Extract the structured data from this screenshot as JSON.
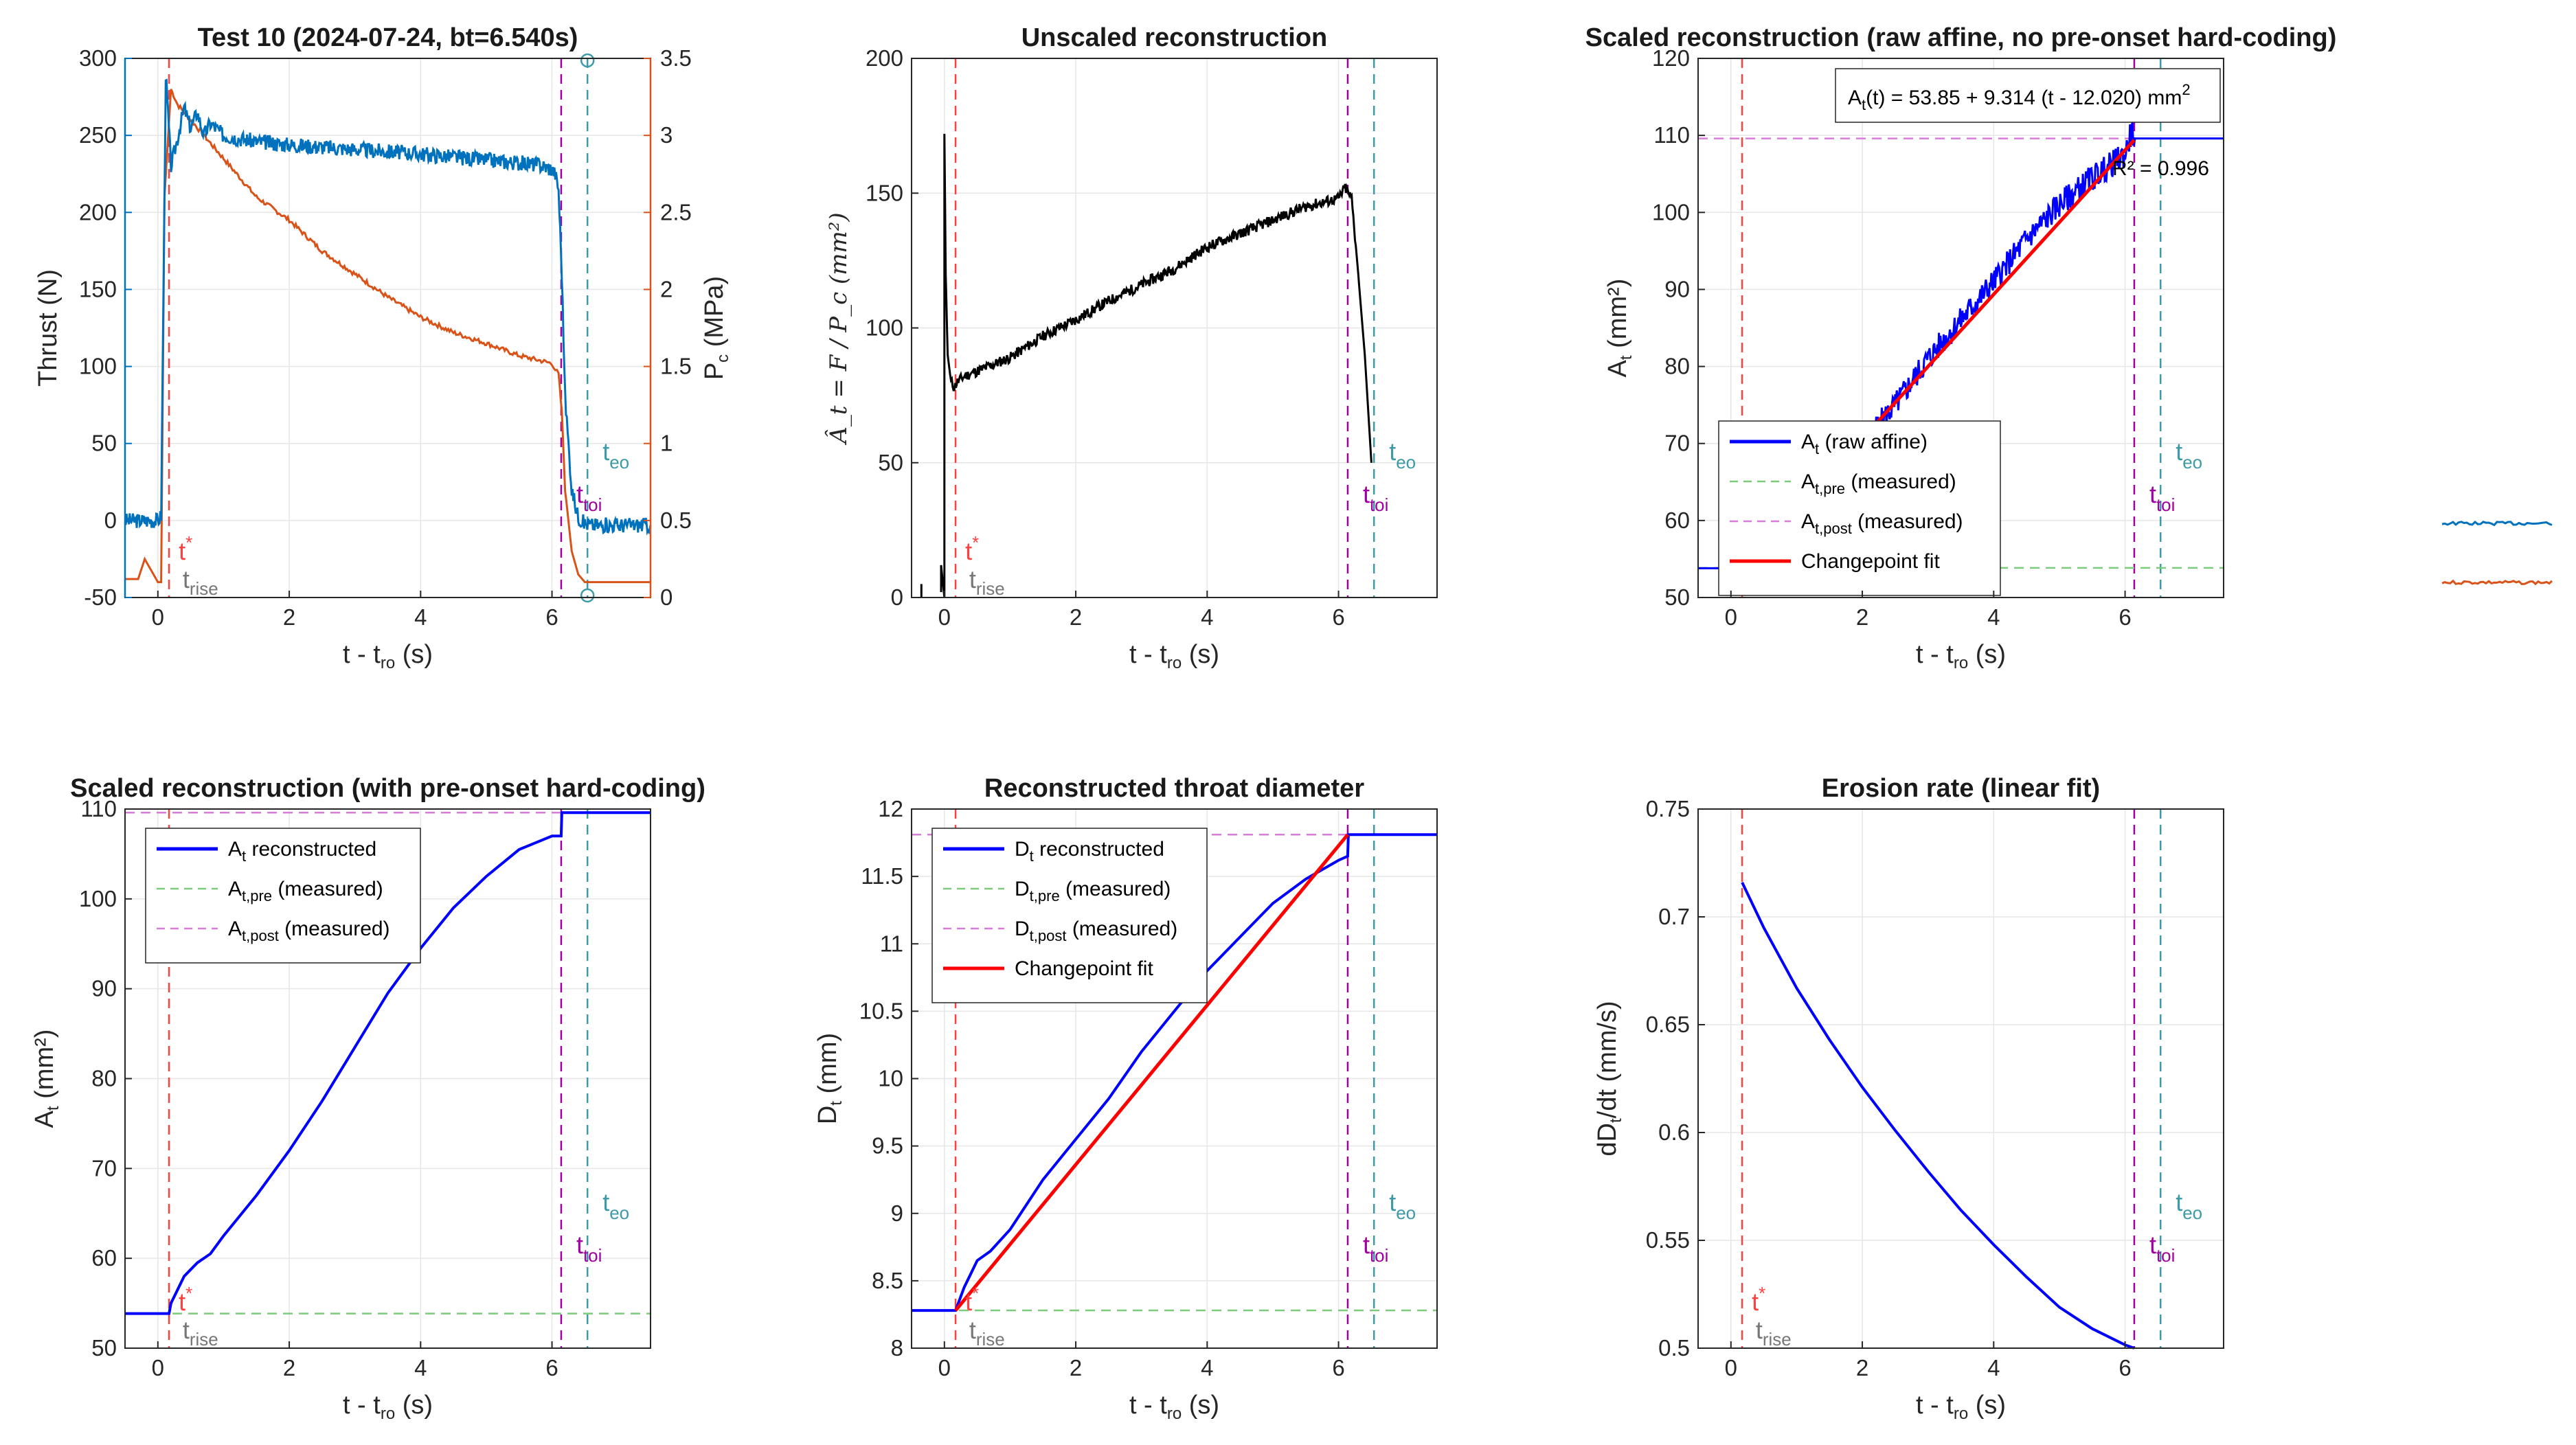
{
  "colors": {
    "thrust": "#0072BD",
    "pc": "#D95319",
    "at_raw": "#0000FF",
    "fit": "#FF0000",
    "pre": "#7CCB7C",
    "post": "#D97CD9",
    "tstar": "#FF4040",
    "toi": "#A000A0",
    "teo": "#3D9AA6",
    "trise": "#777777"
  },
  "annotations": {
    "t_star": "t",
    "t_star_sup": "*",
    "t_rise": "t",
    "t_rise_sub": "rise",
    "t_oi": "t",
    "t_oi_sub": "toi",
    "t_eo": "t",
    "t_eo_sub": "eo"
  },
  "common": {
    "xlabel_main": "t - t",
    "xlabel_sub": "ro",
    "xlabel_unit": " (s)",
    "x_ticks": [
      "0",
      "2",
      "4",
      "6"
    ]
  },
  "chart_data": [
    {
      "id": "p1",
      "type": "line",
      "title": "Test 10   (2024-07-24, bt=6.540s)",
      "ylabel_left": "Thrust (N)",
      "ylabel_right_main": "P",
      "ylabel_right_sub": "c",
      "ylabel_right_unit": " (MPa)",
      "xlim": [
        -0.5,
        7.5
      ],
      "ylim_left": [
        -50,
        300
      ],
      "ylim_right": [
        0,
        3.5
      ],
      "yticks_left": [
        "-50",
        "0",
        "50",
        "100",
        "150",
        "200",
        "250",
        "300"
      ],
      "yticks_right": [
        "0",
        "0.5",
        "1",
        "1.5",
        "2",
        "2.5",
        "3",
        "3.5"
      ],
      "series": [
        {
          "axis": "left",
          "x": [
            -0.5,
            0.0,
            0.05,
            0.12,
            0.2,
            0.3,
            0.4,
            0.5,
            0.6,
            0.7,
            0.8,
            1.0,
            1.5,
            2.0,
            3.0,
            4.0,
            5.0,
            5.8,
            6.0,
            6.05,
            6.1,
            6.15,
            6.2,
            6.3,
            6.4,
            6.5,
            6.6,
            7.0,
            7.5
          ],
          "y": [
            0,
            0,
            3,
            290,
            230,
            248,
            268,
            255,
            265,
            250,
            258,
            250,
            246,
            244,
            241,
            238,
            234,
            231,
            228,
            225,
            215,
            160,
            80,
            20,
            2,
            -2,
            -3,
            -3,
            -3
          ]
        },
        {
          "axis": "right",
          "x": [
            -0.5,
            -0.3,
            -0.2,
            0.0,
            0.05,
            0.1,
            0.2,
            0.3,
            0.5,
            0.8,
            1.0,
            1.5,
            2.0,
            2.5,
            3.0,
            3.5,
            4.0,
            4.5,
            5.0,
            5.5,
            6.0,
            6.05,
            6.1,
            6.15,
            6.2,
            6.3,
            6.4,
            6.5,
            7.5
          ],
          "y": [
            0.12,
            0.12,
            0.25,
            0.1,
            0.1,
            2.6,
            3.3,
            3.2,
            3.1,
            2.95,
            2.85,
            2.6,
            2.45,
            2.25,
            2.1,
            1.95,
            1.82,
            1.72,
            1.65,
            1.57,
            1.52,
            1.48,
            1.45,
            1.2,
            0.7,
            0.3,
            0.15,
            0.1,
            0.1
          ]
        }
      ],
      "vlines": {
        "t_rise": 0.0,
        "t_star": 0.17,
        "t_oi": 6.14,
        "t_eo": 6.54
      }
    },
    {
      "id": "p2",
      "type": "line",
      "title": "Unscaled reconstruction",
      "ylabel": "Â_t = F / P_c (mm²)",
      "xlim": [
        -0.5,
        7.5
      ],
      "ylim": [
        0,
        200
      ],
      "yticks": [
        "0",
        "50",
        "100",
        "150",
        "200"
      ],
      "series": [
        {
          "x": [
            -0.35,
            -0.35
          ],
          "y": [
            0,
            5
          ]
        },
        {
          "x": [
            -0.05,
            -0.05,
            0.0,
            0.0,
            0.02,
            0.05,
            0.1,
            0.15,
            0.2,
            0.3,
            0.5,
            0.8,
            1.0,
            1.5,
            2.0,
            2.5,
            3.0,
            3.5,
            4.0,
            4.5,
            5.0,
            5.5,
            6.0,
            6.1,
            6.2,
            6.3,
            6.4,
            6.5
          ],
          "y": [
            2,
            12,
            0,
            172,
            120,
            90,
            80,
            78,
            80,
            82,
            84,
            87,
            89,
            97,
            103,
            110,
            116,
            122,
            130,
            135,
            140,
            145,
            148,
            152,
            148,
            120,
            90,
            50
          ]
        }
      ],
      "vlines": {
        "t_rise": 0.0,
        "t_star": 0.17,
        "t_oi": 6.14,
        "t_eo": 6.54
      }
    },
    {
      "id": "p3",
      "type": "line",
      "title": "Scaled reconstruction (raw affine, no pre-onset hard-coding)",
      "ylabel_main": "A",
      "ylabel_sub": "t",
      "ylabel_unit": " (mm²)",
      "xlim": [
        -0.5,
        7.5
      ],
      "ylim": [
        50,
        120
      ],
      "yticks": [
        "50",
        "60",
        "70",
        "80",
        "90",
        "100",
        "110",
        "120"
      ],
      "fit_label": "A(t) = 53.85 + 9.314 (t - 12.020) mm",
      "fit_label_sub": "t",
      "fit_label_sup": "2",
      "r2_label": "R² = 0.996",
      "legend": [
        {
          "main": "A",
          "sub": "t",
          "rest": " (raw affine)"
        },
        {
          "main": "A",
          "sub": "t,pre",
          "rest": " (measured)"
        },
        {
          "main": "A",
          "sub": "t,post",
          "rest": " (measured)"
        },
        {
          "main": "Changepoint fit",
          "sub": "",
          "rest": ""
        }
      ],
      "series": [
        {
          "name": "raw",
          "x": [
            -0.5,
            0.3,
            2.2,
            2.5,
            3.0,
            3.5,
            4.0,
            4.5,
            5.0,
            5.5,
            6.0,
            6.1,
            6.15,
            7.5
          ],
          "y": [
            53.8,
            53.8,
            72.0,
            75.0,
            81.0,
            86.0,
            91.0,
            96.5,
            101.0,
            104.5,
            107.5,
            110.5,
            109.6,
            109.6
          ]
        },
        {
          "name": "fit",
          "x": [
            2.2,
            6.14
          ],
          "y": [
            72.5,
            109.4
          ]
        }
      ],
      "hlines": {
        "pre": 53.85,
        "post": 109.6
      },
      "vlines": {
        "t_rise": 0.0,
        "t_star": 0.17,
        "t_oi": 6.14,
        "t_eo": 6.54
      }
    },
    {
      "id": "p4",
      "type": "line",
      "title": "Scaled reconstruction (with pre-onset hard-coding)",
      "ylabel_main": "A",
      "ylabel_sub": "t",
      "ylabel_unit": " (mm²)",
      "xlim": [
        -0.5,
        7.5
      ],
      "ylim": [
        50,
        110
      ],
      "yticks": [
        "50",
        "60",
        "70",
        "80",
        "90",
        "100",
        "110"
      ],
      "legend": [
        {
          "main": "A",
          "sub": "t",
          "rest": " reconstructed"
        },
        {
          "main": "A",
          "sub": "t,pre",
          "rest": " (measured)"
        },
        {
          "main": "A",
          "sub": "t,post",
          "rest": " (measured)"
        }
      ],
      "series": [
        {
          "name": "At",
          "x": [
            -0.5,
            0.17,
            0.2,
            0.4,
            0.6,
            0.8,
            1.0,
            1.5,
            2.0,
            2.5,
            3.0,
            3.5,
            4.0,
            4.5,
            5.0,
            5.5,
            6.0,
            6.14,
            6.15,
            7.5
          ],
          "y": [
            53.85,
            53.85,
            55.0,
            58.0,
            59.5,
            60.5,
            62.5,
            67.0,
            72.0,
            77.5,
            83.5,
            89.5,
            94.5,
            99.0,
            102.5,
            105.5,
            107.0,
            107.0,
            109.6,
            109.6
          ]
        }
      ],
      "hlines": {
        "pre": 53.85,
        "post": 109.6
      },
      "vlines": {
        "t_rise": 0.0,
        "t_star": 0.17,
        "t_oi": 6.14,
        "t_eo": 6.54
      }
    },
    {
      "id": "p5",
      "type": "line",
      "title": "Reconstructed throat diameter",
      "ylabel_main": "D",
      "ylabel_sub": "t",
      "ylabel_unit": " (mm)",
      "xlim": [
        -0.5,
        7.5
      ],
      "ylim": [
        8,
        12
      ],
      "yticks": [
        "8",
        "8.5",
        "9",
        "9.5",
        "10",
        "10.5",
        "11",
        "11.5",
        "12"
      ],
      "legend": [
        {
          "main": "D",
          "sub": "t",
          "rest": " reconstructed"
        },
        {
          "main": "D",
          "sub": "t,pre",
          "rest": " (measured)"
        },
        {
          "main": "D",
          "sub": "t,post",
          "rest": " (measured)"
        },
        {
          "main": "Changepoint fit",
          "sub": "",
          "rest": ""
        }
      ],
      "series": [
        {
          "name": "Dt",
          "x": [
            -0.5,
            0.17,
            0.3,
            0.5,
            0.7,
            1.0,
            1.5,
            2.0,
            2.5,
            3.0,
            3.5,
            4.0,
            4.5,
            5.0,
            5.5,
            6.0,
            6.14,
            6.15,
            7.5
          ],
          "y": [
            8.28,
            8.28,
            8.45,
            8.65,
            8.72,
            8.88,
            9.25,
            9.55,
            9.85,
            10.2,
            10.5,
            10.8,
            11.05,
            11.3,
            11.48,
            11.62,
            11.65,
            11.81,
            11.81
          ]
        },
        {
          "name": "fit",
          "x": [
            0.17,
            6.14
          ],
          "y": [
            8.28,
            11.81
          ]
        }
      ],
      "hlines": {
        "pre": 8.28,
        "post": 11.81
      },
      "vlines": {
        "t_rise": 0.0,
        "t_star": 0.17,
        "t_oi": 6.14,
        "t_eo": 6.54
      }
    },
    {
      "id": "p6",
      "type": "line",
      "title": "Erosion rate (linear fit)",
      "ylabel_main": "dD",
      "ylabel_sub": "t",
      "ylabel_unit": "/dt (mm/s)",
      "xlim": [
        -0.5,
        7.5
      ],
      "ylim": [
        0.5,
        0.75
      ],
      "yticks": [
        "0.5",
        "0.55",
        "0.6",
        "0.65",
        "0.7",
        "0.75"
      ],
      "series": [
        {
          "name": "rate",
          "x": [
            0.17,
            0.5,
            1.0,
            1.5,
            2.0,
            2.5,
            3.0,
            3.5,
            4.0,
            4.5,
            5.0,
            5.5,
            6.0,
            6.14
          ],
          "y": [
            0.716,
            0.695,
            0.667,
            0.643,
            0.621,
            0.601,
            0.582,
            0.564,
            0.548,
            0.533,
            0.519,
            0.509,
            0.5015,
            0.5
          ]
        }
      ],
      "vlines": {
        "t_rise": 0.0,
        "t_star": 0.17,
        "t_oi": 6.14,
        "t_eo": 6.54
      }
    }
  ],
  "legend_fragment": {
    "series": [
      {
        "color": "#0072BD",
        "x": [
          0,
          1
        ],
        "y": [
          0,
          0
        ]
      },
      {
        "color": "#D95319",
        "x": [
          0,
          1
        ],
        "y": [
          0,
          0
        ]
      }
    ]
  }
}
